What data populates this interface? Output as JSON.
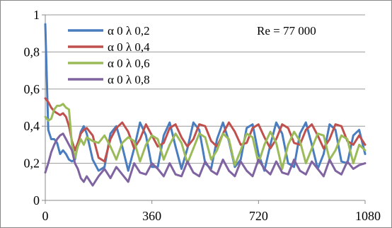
{
  "chart_data": {
    "type": "line",
    "title": "",
    "xlabel": "",
    "ylabel": "",
    "xlim": [
      0,
      1080
    ],
    "ylim": [
      0,
      1
    ],
    "xticks": [
      0,
      360,
      720,
      1080
    ],
    "xtick_labels": [
      "0",
      "360",
      "720",
      "1080"
    ],
    "yticks": [
      0,
      0.2,
      0.4,
      0.6,
      0.8,
      1
    ],
    "ytick_labels": [
      "0",
      "0,2",
      "0,4",
      "0,6",
      "0,8",
      "1"
    ],
    "grid": "horizontal",
    "legend_position": "top-left",
    "annotation": "Re = 77 000",
    "series": [
      {
        "name": "α 0 λ 0,2",
        "color": "#4a7dbf",
        "x": [
          0,
          10,
          20,
          30,
          40,
          50,
          60,
          70,
          80,
          90,
          100,
          110,
          120,
          130,
          140,
          160,
          180,
          200,
          220,
          240,
          260,
          280,
          300,
          320,
          340,
          360,
          380,
          400,
          420,
          440,
          460,
          480,
          500,
          520,
          540,
          560,
          580,
          600,
          620,
          640,
          660,
          680,
          700,
          720,
          740,
          760,
          780,
          800,
          820,
          840,
          860,
          880,
          900,
          920,
          940,
          960,
          980,
          1000,
          1020,
          1040,
          1060,
          1080
        ],
        "y": [
          0.95,
          0.38,
          0.33,
          0.33,
          0.31,
          0.25,
          0.27,
          0.25,
          0.22,
          0.21,
          0.22,
          0.3,
          0.37,
          0.4,
          0.36,
          0.22,
          0.16,
          0.18,
          0.36,
          0.4,
          0.29,
          0.16,
          0.28,
          0.42,
          0.35,
          0.18,
          0.18,
          0.35,
          0.42,
          0.29,
          0.17,
          0.28,
          0.42,
          0.38,
          0.2,
          0.17,
          0.33,
          0.42,
          0.32,
          0.18,
          0.22,
          0.39,
          0.41,
          0.25,
          0.16,
          0.3,
          0.42,
          0.36,
          0.2,
          0.18,
          0.36,
          0.42,
          0.3,
          0.17,
          0.25,
          0.41,
          0.38,
          0.21,
          0.2,
          0.35,
          0.38,
          0.25
        ]
      },
      {
        "name": "α 0 λ 0,4",
        "color": "#c0504d",
        "x": [
          0,
          10,
          20,
          30,
          40,
          50,
          60,
          70,
          80,
          90,
          100,
          110,
          120,
          130,
          140,
          160,
          180,
          200,
          220,
          240,
          260,
          280,
          300,
          320,
          340,
          360,
          380,
          400,
          420,
          440,
          460,
          480,
          500,
          520,
          540,
          560,
          580,
          600,
          620,
          640,
          660,
          680,
          700,
          720,
          740,
          760,
          780,
          800,
          820,
          840,
          860,
          880,
          900,
          920,
          940,
          960,
          980,
          1000,
          1020,
          1040,
          1060,
          1080
        ],
        "y": [
          0.55,
          0.53,
          0.5,
          0.48,
          0.47,
          0.46,
          0.47,
          0.45,
          0.4,
          0.32,
          0.27,
          0.31,
          0.36,
          0.38,
          0.39,
          0.35,
          0.23,
          0.21,
          0.33,
          0.39,
          0.42,
          0.37,
          0.28,
          0.33,
          0.41,
          0.35,
          0.29,
          0.31,
          0.39,
          0.41,
          0.34,
          0.29,
          0.33,
          0.41,
          0.4,
          0.32,
          0.29,
          0.36,
          0.42,
          0.37,
          0.3,
          0.31,
          0.39,
          0.41,
          0.34,
          0.28,
          0.33,
          0.41,
          0.39,
          0.31,
          0.3,
          0.38,
          0.41,
          0.35,
          0.28,
          0.33,
          0.41,
          0.4,
          0.32,
          0.3,
          0.35,
          0.3
        ]
      },
      {
        "name": "α 0 λ 0,6",
        "color": "#9bbb59",
        "x": [
          0,
          10,
          20,
          30,
          40,
          50,
          60,
          70,
          80,
          90,
          100,
          110,
          120,
          130,
          140,
          160,
          180,
          200,
          220,
          240,
          260,
          280,
          300,
          320,
          340,
          360,
          380,
          400,
          420,
          440,
          460,
          480,
          500,
          520,
          540,
          560,
          580,
          600,
          620,
          640,
          660,
          680,
          700,
          720,
          740,
          760,
          780,
          800,
          820,
          840,
          860,
          880,
          900,
          920,
          940,
          960,
          980,
          1000,
          1020,
          1040,
          1060,
          1080
        ],
        "y": [
          0.45,
          0.43,
          0.44,
          0.49,
          0.51,
          0.51,
          0.52,
          0.5,
          0.49,
          0.3,
          0.23,
          0.29,
          0.33,
          0.3,
          0.34,
          0.32,
          0.31,
          0.35,
          0.29,
          0.22,
          0.31,
          0.34,
          0.32,
          0.21,
          0.3,
          0.35,
          0.33,
          0.22,
          0.3,
          0.36,
          0.31,
          0.2,
          0.28,
          0.36,
          0.34,
          0.22,
          0.27,
          0.36,
          0.33,
          0.19,
          0.27,
          0.36,
          0.34,
          0.2,
          0.3,
          0.37,
          0.31,
          0.17,
          0.3,
          0.37,
          0.32,
          0.2,
          0.28,
          0.36,
          0.35,
          0.22,
          0.27,
          0.35,
          0.33,
          0.2,
          0.3,
          0.27
        ]
      },
      {
        "name": "α 0 λ 0,8",
        "color": "#8064a2",
        "x": [
          0,
          10,
          20,
          30,
          40,
          50,
          60,
          70,
          80,
          90,
          100,
          110,
          120,
          130,
          140,
          160,
          180,
          200,
          220,
          240,
          260,
          280,
          300,
          320,
          340,
          360,
          380,
          400,
          420,
          440,
          460,
          480,
          500,
          520,
          540,
          560,
          580,
          600,
          620,
          640,
          660,
          680,
          700,
          720,
          740,
          760,
          780,
          800,
          820,
          840,
          860,
          880,
          900,
          920,
          940,
          960,
          980,
          1000,
          1020,
          1040,
          1060,
          1080
        ],
        "y": [
          0.15,
          0.2,
          0.26,
          0.3,
          0.33,
          0.35,
          0.36,
          0.33,
          0.3,
          0.27,
          0.2,
          0.17,
          0.12,
          0.1,
          0.13,
          0.08,
          0.13,
          0.17,
          0.12,
          0.18,
          0.14,
          0.1,
          0.2,
          0.15,
          0.14,
          0.2,
          0.17,
          0.13,
          0.2,
          0.14,
          0.13,
          0.21,
          0.15,
          0.13,
          0.21,
          0.16,
          0.14,
          0.22,
          0.16,
          0.13,
          0.21,
          0.16,
          0.13,
          0.22,
          0.17,
          0.14,
          0.21,
          0.15,
          0.14,
          0.22,
          0.16,
          0.14,
          0.21,
          0.17,
          0.13,
          0.22,
          0.16,
          0.14,
          0.21,
          0.17,
          0.19,
          0.2
        ]
      }
    ]
  }
}
